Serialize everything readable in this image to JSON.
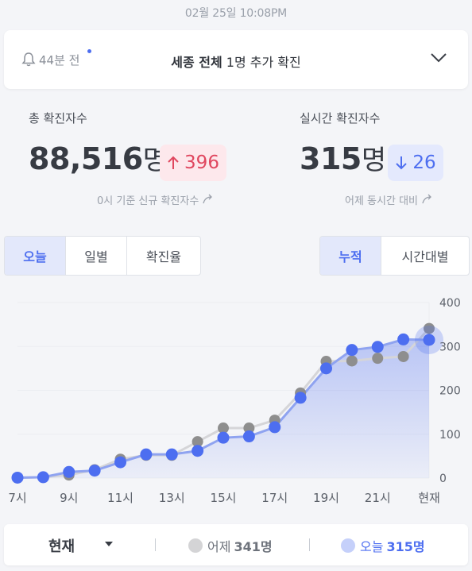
{
  "timestamp": "02월 25일 10:08PM",
  "notice": {
    "ago": "44분 전",
    "region": "세종 전체",
    "message": "1명 추가 확진",
    "icons": {
      "bell": "bell-icon",
      "expand": "chevron-down-icon",
      "new": "new-dot"
    }
  },
  "stats": {
    "total": {
      "label": "총 확진자수",
      "value": "88,516",
      "unit": "명",
      "delta": "396",
      "delta_dir": "up",
      "footnote": "0시 기준 신규 확진자수"
    },
    "realtime": {
      "label": "실시간 확진자수",
      "value": "315",
      "unit": "명",
      "delta": "26",
      "delta_dir": "down",
      "footnote": "어제 동시간 대비"
    }
  },
  "tabs_left": [
    {
      "label": "오늘",
      "active": true
    },
    {
      "label": "일별",
      "active": false
    },
    {
      "label": "확진율",
      "active": false
    }
  ],
  "tabs_right": [
    {
      "label": "누적",
      "active": true
    },
    {
      "label": "시간대별",
      "active": false
    }
  ],
  "legend": {
    "selector": "현재",
    "yesterday_label": "어제",
    "yesterday_value": "341명",
    "today_label": "오늘",
    "today_value": "315명"
  },
  "colors": {
    "today": "#4d6ef0",
    "yesterday": "#8e8e8e",
    "up": "#e0475f",
    "down": "#4d6ef0"
  },
  "chart_data": {
    "type": "line",
    "x": [
      "7시",
      "8시",
      "9시",
      "10시",
      "11시",
      "12시",
      "13시",
      "14시",
      "15시",
      "16시",
      "17시",
      "18시",
      "19시",
      "20시",
      "21시",
      "22시",
      "현재"
    ],
    "x_tick_labels": [
      "7시",
      "9시",
      "11시",
      "13시",
      "15시",
      "17시",
      "19시",
      "21시",
      "현재"
    ],
    "y_ticks": [
      0,
      100,
      200,
      300,
      400
    ],
    "ylim": [
      0,
      400
    ],
    "series": [
      {
        "name": "어제",
        "values": [
          1,
          2,
          7,
          19,
          43,
          52,
          52,
          83,
          114,
          114,
          132,
          194,
          266,
          267,
          273,
          277,
          341
        ]
      },
      {
        "name": "오늘",
        "values": [
          1,
          2,
          14,
          17,
          36,
          54,
          54,
          62,
          92,
          95,
          116,
          183,
          250,
          292,
          299,
          316,
          315
        ]
      }
    ],
    "grid": true,
    "legend_position": "bottom"
  }
}
